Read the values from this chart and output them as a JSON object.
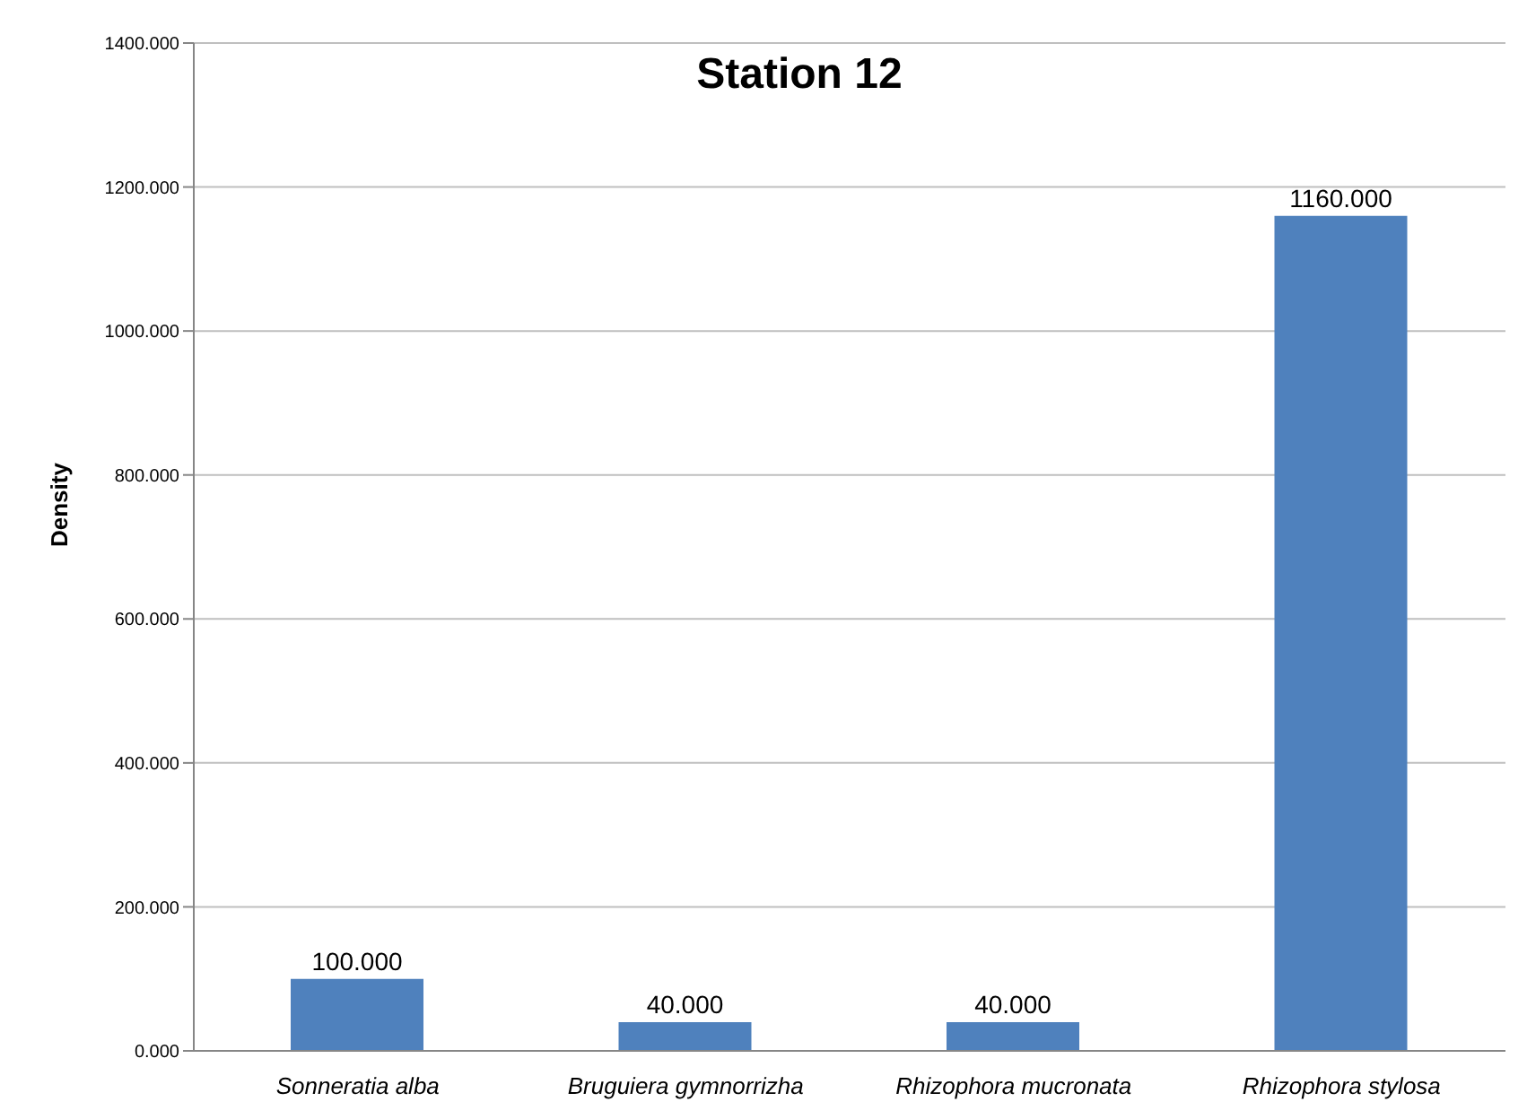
{
  "chart_data": {
    "type": "bar",
    "title": "Station 12",
    "ylabel": "Density",
    "categories": [
      "Sonneratia alba",
      "Bruguiera gymnorrizha",
      "Rhizophora mucronata",
      "Rhizophora stylosa"
    ],
    "values": [
      100,
      40,
      40,
      1160
    ],
    "value_labels": [
      "100.000",
      "40.000",
      "40.000",
      "1160.000"
    ],
    "color": "#4f81bd",
    "ylim": [
      0,
      1400
    ],
    "yticks": [
      {
        "value": 0,
        "label": "0.000"
      },
      {
        "value": 200,
        "label": "200.000"
      },
      {
        "value": 400,
        "label": "400.000"
      },
      {
        "value": 600,
        "label": "600.000"
      },
      {
        "value": 800,
        "label": "800.000"
      },
      {
        "value": 1000,
        "label": "1000.000"
      },
      {
        "value": 1200,
        "label": "1200.000"
      },
      {
        "value": 1400,
        "label": "1400.000"
      }
    ],
    "grid": "y",
    "legend": false
  }
}
